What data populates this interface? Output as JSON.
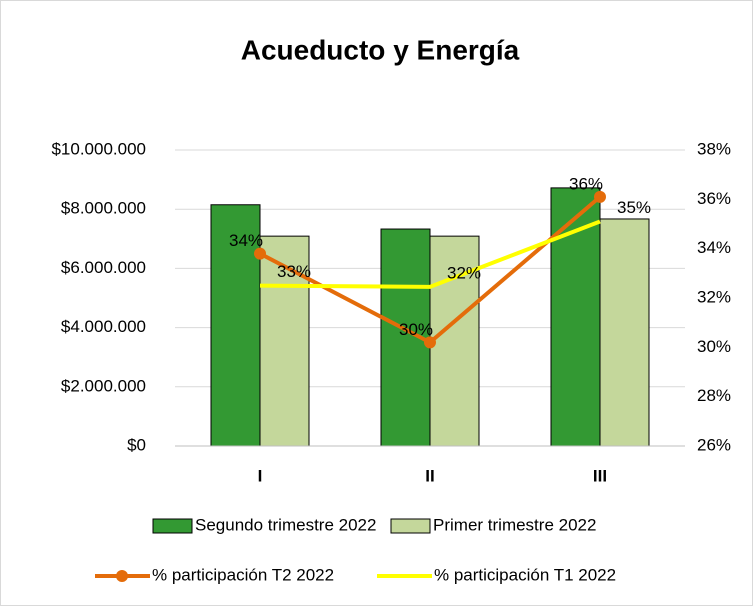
{
  "chart_data": {
    "type": "bar_line",
    "title": "Acueducto y Energía",
    "categories": [
      "I",
      "II",
      "III"
    ],
    "series": [
      {
        "name": "Segundo trimestre 2022",
        "type": "bar",
        "color": "#339933",
        "values": [
          8150000,
          7330000,
          8720000
        ]
      },
      {
        "name": "Primer trimestre 2022",
        "type": "bar",
        "color": "#c4d79b",
        "values": [
          7090000,
          7090000,
          7670000
        ]
      },
      {
        "name": "% participación T2 2022",
        "type": "line",
        "axis": "y2",
        "color": "#e46c0a",
        "marker": true,
        "values": [
          33.8,
          30.2,
          36.1
        ],
        "value_labels": [
          "34%",
          "30%",
          "36%"
        ]
      },
      {
        "name": "% participación T1 2022",
        "type": "line",
        "axis": "y2",
        "color": "#ffff00",
        "marker": false,
        "values": [
          32.5,
          32.45,
          35.1
        ],
        "value_labels": [
          "33%",
          "32%",
          "35%"
        ]
      }
    ],
    "ylim": [
      0,
      10000000
    ],
    "yticks": [
      {
        "value": 0,
        "label": "$0"
      },
      {
        "value": 2000000,
        "label": "$2.000.000"
      },
      {
        "value": 4000000,
        "label": "$4.000.000"
      },
      {
        "value": 6000000,
        "label": "$6.000.000"
      },
      {
        "value": 8000000,
        "label": "$8.000.000"
      },
      {
        "value": 10000000,
        "label": "$10.000.000"
      }
    ],
    "y2lim": [
      26,
      38
    ],
    "y2ticks": [
      {
        "value": 26,
        "label": "26%"
      },
      {
        "value": 28,
        "label": "28%"
      },
      {
        "value": 30,
        "label": "30%"
      },
      {
        "value": 32,
        "label": "32%"
      },
      {
        "value": 34,
        "label": "34%"
      },
      {
        "value": 36,
        "label": "36%"
      },
      {
        "value": 38,
        "label": "38%"
      }
    ],
    "grid": true,
    "legend": "bottom"
  }
}
